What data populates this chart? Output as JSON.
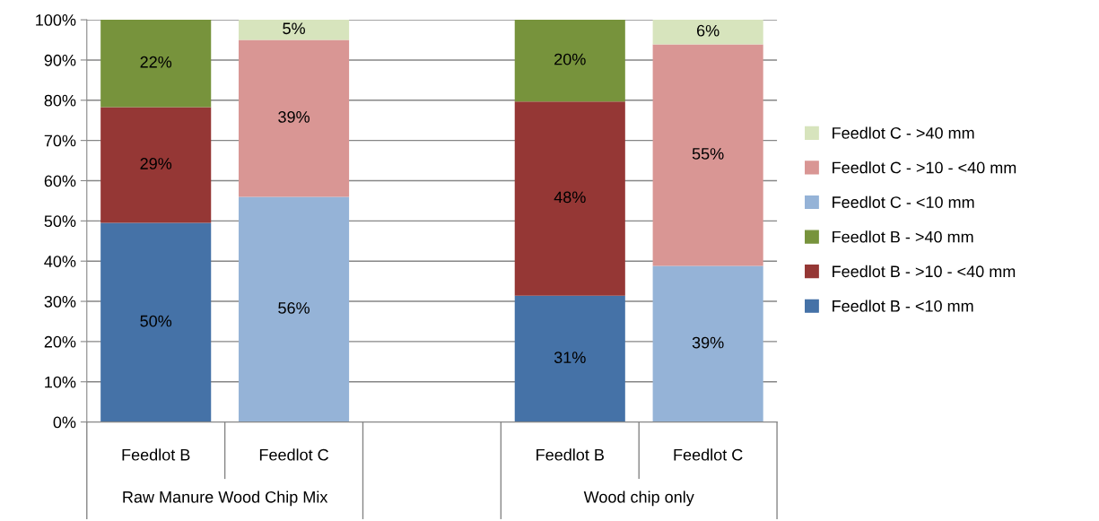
{
  "chart_data": {
    "type": "bar",
    "stacked": true,
    "categories": [
      "Feedlot B",
      "Feedlot C",
      null,
      "Feedlot B",
      "Feedlot C"
    ],
    "annotations": [
      "Raw Manure Wood Chip Mix",
      "Wood chip only"
    ],
    "series": [
      {
        "name": "Feedlot B - <10 mm",
        "color": "#4572a7",
        "values": [
          49.5,
          null,
          null,
          31.4,
          null
        ],
        "value_labels": [
          "50%",
          null,
          null,
          "31%",
          null
        ]
      },
      {
        "name": "Feedlot B - >10 - <40 mm",
        "color": "#953735",
        "values": [
          28.8,
          null,
          null,
          48.3,
          null
        ],
        "value_labels": [
          "29%",
          null,
          null,
          "48%",
          null
        ]
      },
      {
        "name": "Feedlot B - >40 mm",
        "color": "#77933c",
        "values": [
          21.7,
          null,
          null,
          20.3,
          null
        ],
        "value_labels": [
          "22%",
          null,
          null,
          "20%",
          null
        ]
      },
      {
        "name": "Feedlot C - <10 mm",
        "color": "#95b3d7",
        "values": [
          null,
          56.0,
          null,
          null,
          38.8
        ],
        "value_labels": [
          null,
          "56%",
          null,
          null,
          "39%"
        ]
      },
      {
        "name": "Feedlot C - >10 - <40 mm",
        "color": "#d99694",
        "values": [
          null,
          39.0,
          null,
          null,
          55.1
        ],
        "value_labels": [
          null,
          "39%",
          null,
          null,
          "55%"
        ]
      },
      {
        "name": "Feedlot C - >40 mm",
        "color": "#d7e4bd",
        "values": [
          null,
          5.0,
          null,
          null,
          6.1
        ],
        "value_labels": [
          null,
          "5%",
          null,
          null,
          "6%"
        ]
      }
    ],
    "ylim": [
      0,
      100
    ],
    "yticks": [
      {
        "value": 0,
        "label": "0%"
      },
      {
        "value": 10,
        "label": "10%"
      },
      {
        "value": 20,
        "label": "20%"
      },
      {
        "value": 30,
        "label": "30%"
      },
      {
        "value": 40,
        "label": "40%"
      },
      {
        "value": 50,
        "label": "50%"
      },
      {
        "value": 60,
        "label": "60%"
      },
      {
        "value": 70,
        "label": "70%"
      },
      {
        "value": 80,
        "label": "80%"
      },
      {
        "value": 90,
        "label": "90%"
      },
      {
        "value": 100,
        "label": "100%"
      }
    ],
    "grid": "y",
    "legend": "right"
  }
}
